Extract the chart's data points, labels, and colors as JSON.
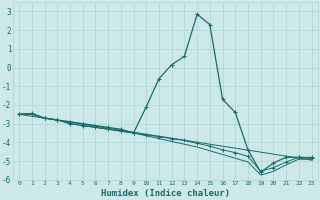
{
  "xlabel": "Humidex (Indice chaleur)",
  "bg_color": "#cce8e8",
  "grid_color": "#b0d4d4",
  "line_color": "#1a6b6b",
  "xlim": [
    -0.5,
    23.5
  ],
  "ylim": [
    -6,
    3.5
  ],
  "xticks": [
    0,
    1,
    2,
    3,
    4,
    5,
    6,
    7,
    8,
    9,
    10,
    11,
    12,
    13,
    14,
    15,
    16,
    17,
    18,
    19,
    20,
    21,
    22,
    23
  ],
  "yticks": [
    -6,
    -5,
    -4,
    -3,
    -2,
    -1,
    0,
    1,
    2,
    3
  ],
  "line1_x": [
    0,
    1,
    2,
    3,
    4,
    5,
    6,
    7,
    8,
    9,
    10,
    11,
    12,
    13,
    14,
    15,
    16,
    17,
    18,
    19,
    20,
    21,
    22,
    23
  ],
  "line1_y": [
    -2.5,
    -2.5,
    -2.7,
    -2.8,
    -2.9,
    -3.0,
    -3.1,
    -3.2,
    -3.3,
    -3.5,
    -2.1,
    -0.6,
    0.15,
    0.6,
    2.85,
    2.3,
    -1.7,
    -2.4,
    -4.4,
    -5.6,
    -5.1,
    -4.8,
    -4.8,
    -4.85
  ],
  "line2_x": [
    0,
    1,
    2,
    3,
    4,
    5,
    6,
    7,
    8,
    9,
    10,
    11,
    12,
    13,
    14,
    15,
    16,
    17,
    18,
    19,
    20,
    21,
    22,
    23
  ],
  "line2_y": [
    -2.5,
    -2.45,
    -2.7,
    -2.8,
    -3.0,
    -3.1,
    -3.2,
    -3.3,
    -3.4,
    -3.5,
    -3.6,
    -3.7,
    -3.8,
    -3.9,
    -4.05,
    -4.2,
    -4.4,
    -4.55,
    -4.75,
    -5.55,
    -5.35,
    -5.05,
    -4.8,
    -4.8
  ],
  "line3_x": [
    0,
    1,
    2,
    3,
    4,
    5,
    6,
    7,
    8,
    9,
    10,
    11,
    12,
    13,
    14,
    15,
    16,
    17,
    18,
    19,
    20,
    21,
    22,
    23
  ],
  "line3_y": [
    -2.5,
    -2.45,
    -2.7,
    -2.8,
    -3.0,
    -3.1,
    -3.2,
    -3.3,
    -3.4,
    -3.5,
    -3.65,
    -3.8,
    -3.95,
    -4.1,
    -4.25,
    -4.45,
    -4.65,
    -4.85,
    -5.05,
    -5.75,
    -5.55,
    -5.2,
    -4.9,
    -4.9
  ],
  "line4_x": [
    0,
    23
  ],
  "line4_y": [
    -2.5,
    -4.95
  ]
}
